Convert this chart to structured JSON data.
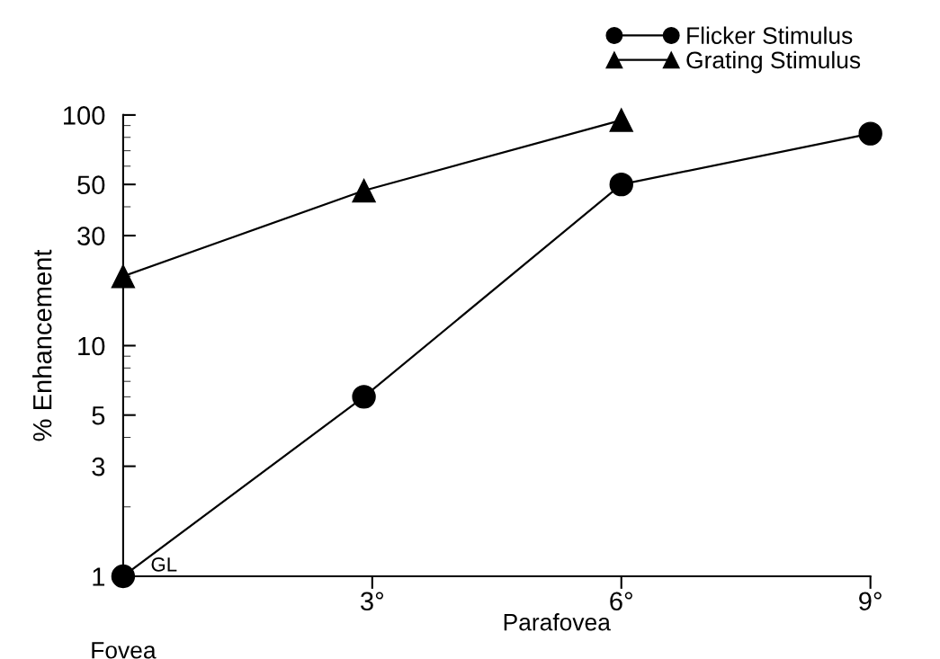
{
  "chart_data": {
    "type": "line",
    "ylabel": "% Enhancement",
    "xlabel": "Parafovea",
    "log": "y",
    "ylim": [
      1,
      100
    ],
    "yticks": [
      1,
      3,
      5,
      10,
      30,
      50,
      100
    ],
    "xlim": [
      0,
      9
    ],
    "xticks": [
      {
        "value": 3,
        "label": "3°"
      },
      {
        "value": 6,
        "label": "6°"
      },
      {
        "value": 9,
        "label": "9°"
      }
    ],
    "series": [
      {
        "name": "Flicker Stimulus",
        "color": "#000000",
        "marker": "circle",
        "x": [
          0,
          2.9,
          6,
          9
        ],
        "values": [
          1,
          6,
          50,
          83
        ]
      },
      {
        "name": "Grating Stimulus",
        "color": "#000000",
        "marker": "triangle",
        "x": [
          0,
          2.9,
          6
        ],
        "values": [
          20,
          47,
          95
        ]
      }
    ],
    "line_style": "solid",
    "legend": "top right",
    "grid": false,
    "annotations": [
      "Fovea",
      {
        "text": "GL",
        "x": 0,
        "y": 1
      }
    ]
  }
}
